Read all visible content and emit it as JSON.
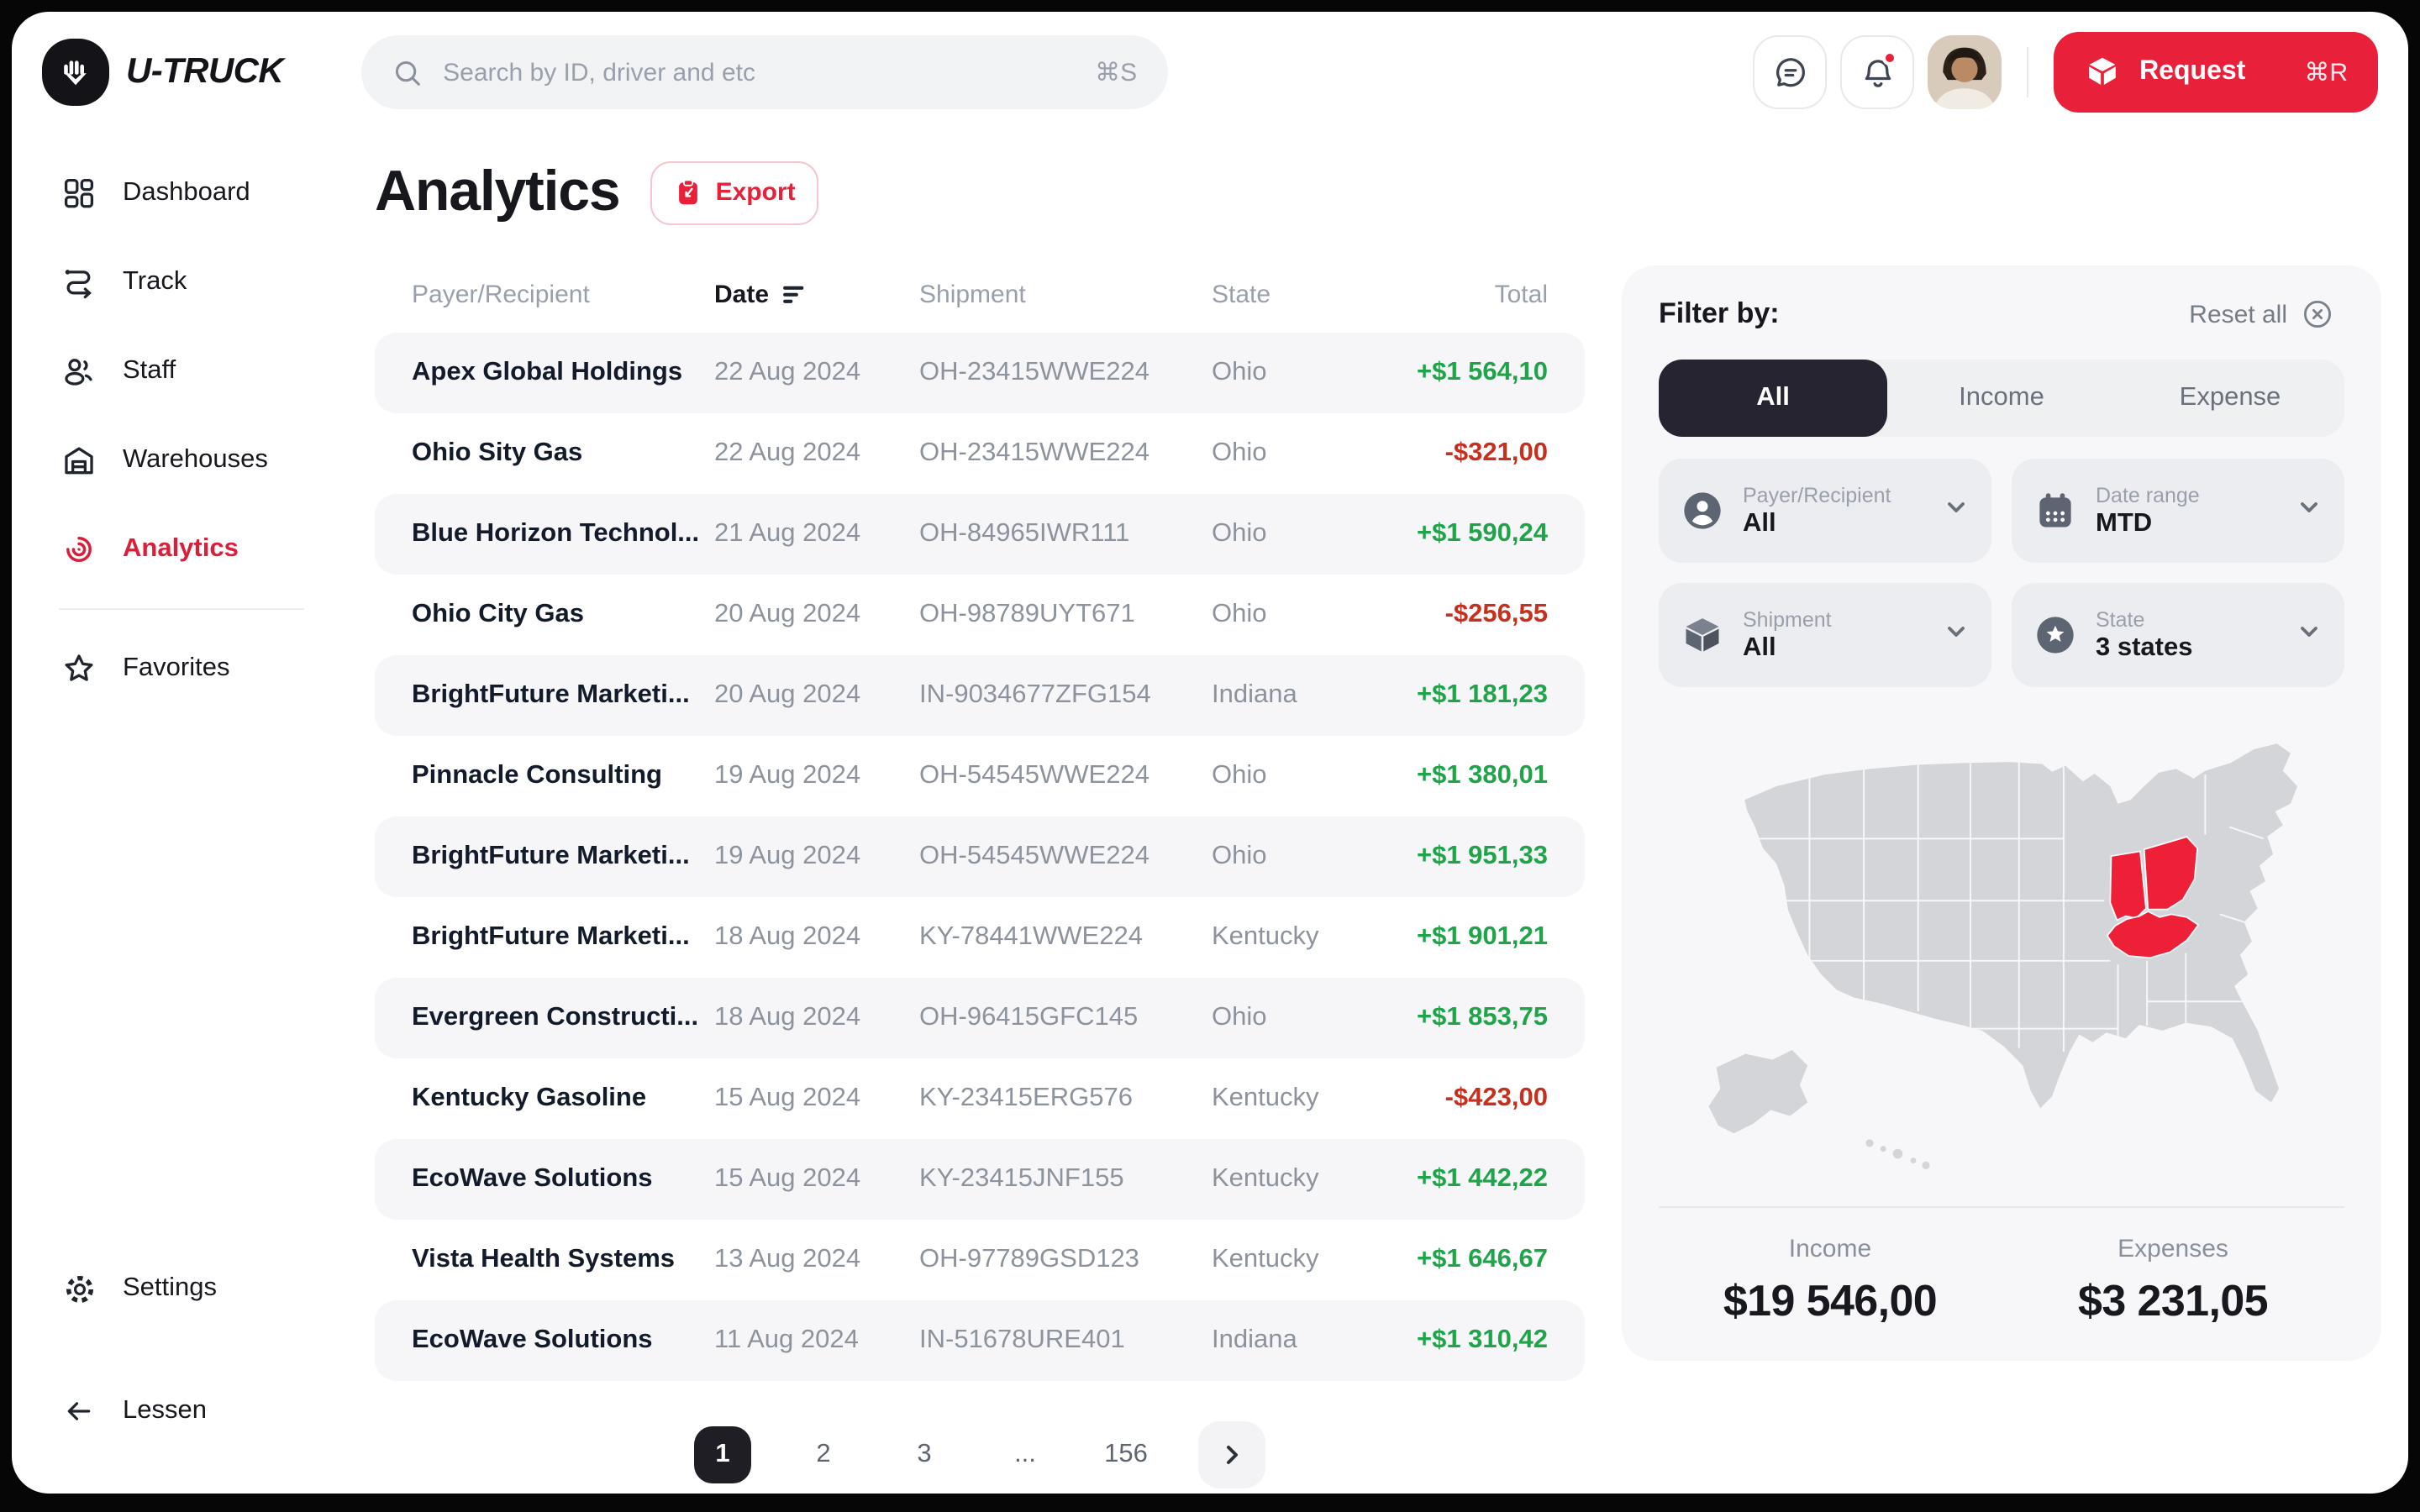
{
  "header": {
    "brand": "U-TRUCK",
    "search": {
      "placeholder": "Search by ID, driver and etc",
      "shortcut": "⌘S",
      "value": ""
    },
    "actions": {
      "chat": "messages",
      "notifications": "alerts",
      "notifications_has_badge": true
    },
    "request": {
      "label": "Request",
      "shortcut": "⌘R"
    }
  },
  "sidebar": {
    "items": [
      {
        "id": "dashboard",
        "label": "Dashboard",
        "icon": "dashboard-icon",
        "active": false
      },
      {
        "id": "track",
        "label": "Track",
        "icon": "track-icon",
        "active": false
      },
      {
        "id": "staff",
        "label": "Staff",
        "icon": "staff-icon",
        "active": false
      },
      {
        "id": "warehouses",
        "label": "Warehouses",
        "icon": "warehouse-icon",
        "active": false
      },
      {
        "id": "analytics",
        "label": "Analytics",
        "icon": "analytics-icon",
        "active": true,
        "divider_after": true
      },
      {
        "id": "favorites",
        "label": "Favorites",
        "icon": "star-icon",
        "active": false
      }
    ],
    "footer": {
      "settings_label": "Settings",
      "collapse_label": "Lessen"
    }
  },
  "page": {
    "title": "Analytics",
    "export_label": "Export"
  },
  "table": {
    "columns": [
      "Payer/Recipient",
      "Date",
      "Shipment",
      "State",
      "Total"
    ],
    "sorted_column": "Date",
    "rows": [
      {
        "payer": "Apex Global Holdings",
        "date": "22 Aug 2024",
        "shipment": "OH-23415WWE224",
        "state": "Ohio",
        "total": "+$1 564,10",
        "direction": "income"
      },
      {
        "payer": "Ohio Sity Gas",
        "date": "22 Aug 2024",
        "shipment": "OH-23415WWE224",
        "state": "Ohio",
        "total": "-$321,00",
        "direction": "expense"
      },
      {
        "payer": "Blue Horizon Technol...",
        "date": "21 Aug 2024",
        "shipment": "OH-84965IWR111",
        "state": "Ohio",
        "total": "+$1 590,24",
        "direction": "income"
      },
      {
        "payer": "Ohio City Gas",
        "date": "20 Aug 2024",
        "shipment": "OH-98789UYT671",
        "state": "Ohio",
        "total": "-$256,55",
        "direction": "expense"
      },
      {
        "payer": "BrightFuture Marketi...",
        "date": "20 Aug 2024",
        "shipment": "IN-9034677ZFG154",
        "state": "Indiana",
        "total": "+$1 181,23",
        "direction": "income"
      },
      {
        "payer": "Pinnacle Consulting",
        "date": "19 Aug 2024",
        "shipment": "OH-54545WWE224",
        "state": "Ohio",
        "total": "+$1 380,01",
        "direction": "income"
      },
      {
        "payer": "BrightFuture Marketi...",
        "date": "19 Aug 2024",
        "shipment": "OH-54545WWE224",
        "state": "Ohio",
        "total": "+$1 951,33",
        "direction": "income"
      },
      {
        "payer": "BrightFuture Marketi...",
        "date": "18 Aug 2024",
        "shipment": "KY-78441WWE224",
        "state": "Kentucky",
        "total": "+$1 901,21",
        "direction": "income"
      },
      {
        "payer": "Evergreen Constructi...",
        "date": "18 Aug 2024",
        "shipment": "OH-96415GFC145",
        "state": "Ohio",
        "total": "+$1 853,75",
        "direction": "income"
      },
      {
        "payer": "Kentucky Gasoline",
        "date": "15 Aug 2024",
        "shipment": "KY-23415ERG576",
        "state": "Kentucky",
        "total": "-$423,00",
        "direction": "expense"
      },
      {
        "payer": "EcoWave Solutions",
        "date": "15 Aug 2024",
        "shipment": "KY-23415JNF155",
        "state": "Kentucky",
        "total": "+$1 442,22",
        "direction": "income"
      },
      {
        "payer": "Vista Health Systems",
        "date": "13 Aug 2024",
        "shipment": "OH-97789GSD123",
        "state": "Kentucky",
        "total": "+$1 646,67",
        "direction": "income"
      },
      {
        "payer": "EcoWave Solutions",
        "date": "11 Aug 2024",
        "shipment": "IN-51678URE401",
        "state": "Indiana",
        "total": "+$1 310,42",
        "direction": "income"
      }
    ]
  },
  "filters": {
    "title": "Filter by:",
    "reset_label": "Reset all",
    "tabs": [
      "All",
      "Income",
      "Expense"
    ],
    "active_tab": "All",
    "fields": [
      {
        "label": "Payer/Recipient",
        "value": "All",
        "icon": "person-icon"
      },
      {
        "label": "Date range",
        "value": "MTD",
        "icon": "calendar-icon"
      },
      {
        "label": "Shipment",
        "value": "All",
        "icon": "box-icon"
      },
      {
        "label": "State",
        "value": "3 states",
        "icon": "location-icon"
      }
    ]
  },
  "map": {
    "highlighted_states": [
      "Indiana",
      "Ohio",
      "Kentucky"
    ]
  },
  "summary": {
    "income": {
      "label": "Income",
      "value": "$19 546,00"
    },
    "expenses": {
      "label": "Expenses",
      "value": "$3 231,05"
    }
  },
  "pagination": {
    "pages": [
      "1",
      "2",
      "3",
      "...",
      "156"
    ],
    "active": "1"
  },
  "colors": {
    "accent": "#e8203a",
    "accent_dark": "#d91f3a",
    "positive": "#1fa44a",
    "negative": "#c5301f",
    "map_land": "#d3d5d9",
    "map_highlight": "#ee2038"
  }
}
